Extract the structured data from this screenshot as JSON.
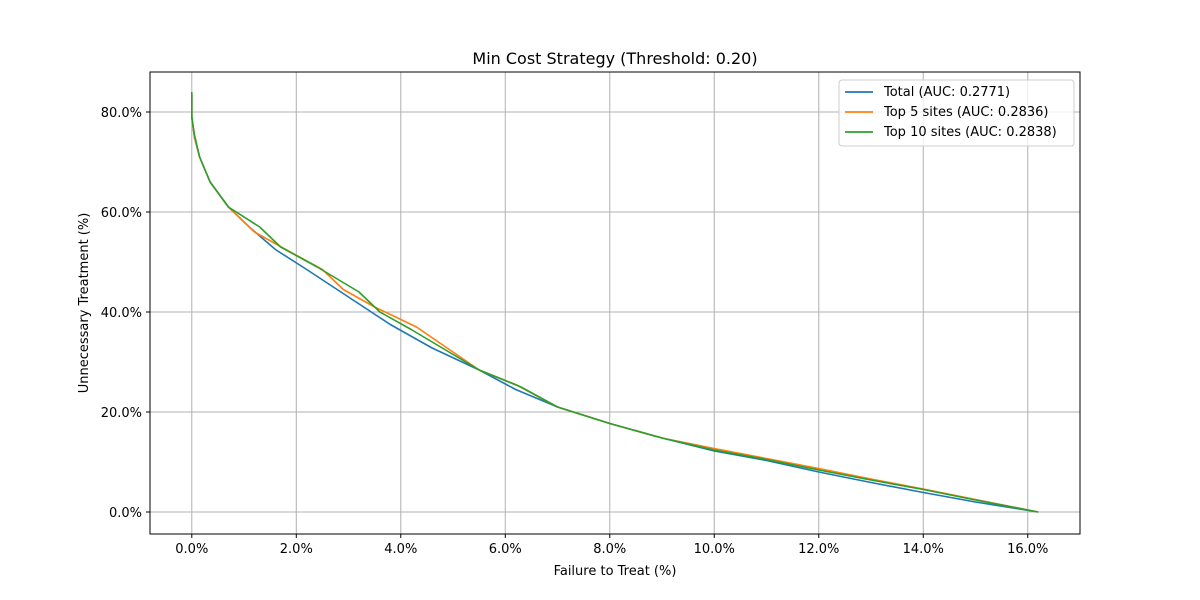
{
  "chart_data": {
    "type": "line",
    "title": "Min Cost Strategy (Threshold: 0.20)",
    "xlabel": "Failure to Treat (%)",
    "ylabel": "Unnecessary Treatment (%)",
    "xlim": [
      -0.8,
      17.0
    ],
    "ylim": [
      -4.4,
      88.0
    ],
    "xticks": [
      0,
      2,
      4,
      6,
      8,
      10,
      12,
      14,
      16
    ],
    "xtick_labels": [
      "0.0%",
      "2.0%",
      "4.0%",
      "6.0%",
      "8.0%",
      "10.0%",
      "12.0%",
      "14.0%",
      "16.0%"
    ],
    "yticks": [
      0,
      20,
      40,
      60,
      80
    ],
    "ytick_labels": [
      "0.0%",
      "20.0%",
      "40.0%",
      "60.0%",
      "80.0%"
    ],
    "grid": true,
    "legend_position": "top-right",
    "series": [
      {
        "name": "Total (AUC: 0.2771)",
        "color": "#1f77b4",
        "x": [
          0.0,
          0.0,
          0.05,
          0.15,
          0.35,
          0.7,
          1.1,
          1.6,
          2.2,
          3.0,
          3.8,
          4.6,
          5.5,
          6.2,
          7.0,
          8.0,
          9.0,
          10.0,
          11.0,
          12.0,
          13.0,
          14.0,
          15.0,
          16.2
        ],
        "y": [
          83.5,
          79.0,
          75.0,
          71.0,
          66.0,
          61.0,
          57.0,
          52.5,
          48.5,
          43.0,
          37.5,
          32.8,
          28.4,
          24.5,
          21.0,
          17.7,
          14.8,
          12.2,
          10.3,
          8.0,
          5.9,
          3.9,
          2.0,
          0.0
        ]
      },
      {
        "name": "Top 5 sites (AUC: 0.2836)",
        "color": "#ff7f0e",
        "x": [
          0.0,
          0.0,
          0.05,
          0.15,
          0.35,
          0.7,
          1.2,
          1.8,
          2.5,
          2.9,
          3.5,
          4.3,
          5.5,
          6.2,
          7.0,
          8.0,
          9.0,
          10.0,
          11.0,
          12.0,
          13.0,
          14.0,
          15.0,
          16.2
        ],
        "y": [
          83.5,
          79.0,
          75.0,
          71.0,
          66.0,
          61.0,
          56.0,
          52.5,
          48.5,
          44.5,
          41.0,
          37.0,
          28.4,
          25.5,
          21.0,
          17.7,
          14.8,
          12.7,
          10.7,
          8.7,
          6.6,
          4.6,
          2.5,
          0.0
        ]
      },
      {
        "name": "Top 10 sites (AUC: 0.2838)",
        "color": "#2ca02c",
        "x": [
          0.0,
          0.0,
          0.05,
          0.15,
          0.35,
          0.7,
          1.3,
          1.7,
          2.4,
          3.2,
          3.6,
          4.2,
          5.5,
          6.3,
          7.0,
          8.0,
          9.0,
          10.0,
          11.0,
          12.0,
          13.0,
          14.0,
          15.0,
          16.2
        ],
        "y": [
          84.0,
          79.0,
          75.5,
          71.0,
          66.0,
          61.0,
          57.0,
          53.0,
          49.0,
          44.0,
          40.0,
          36.5,
          28.4,
          25.0,
          21.0,
          17.7,
          14.8,
          12.4,
          10.5,
          8.4,
          6.4,
          4.5,
          2.4,
          0.0
        ]
      }
    ]
  }
}
